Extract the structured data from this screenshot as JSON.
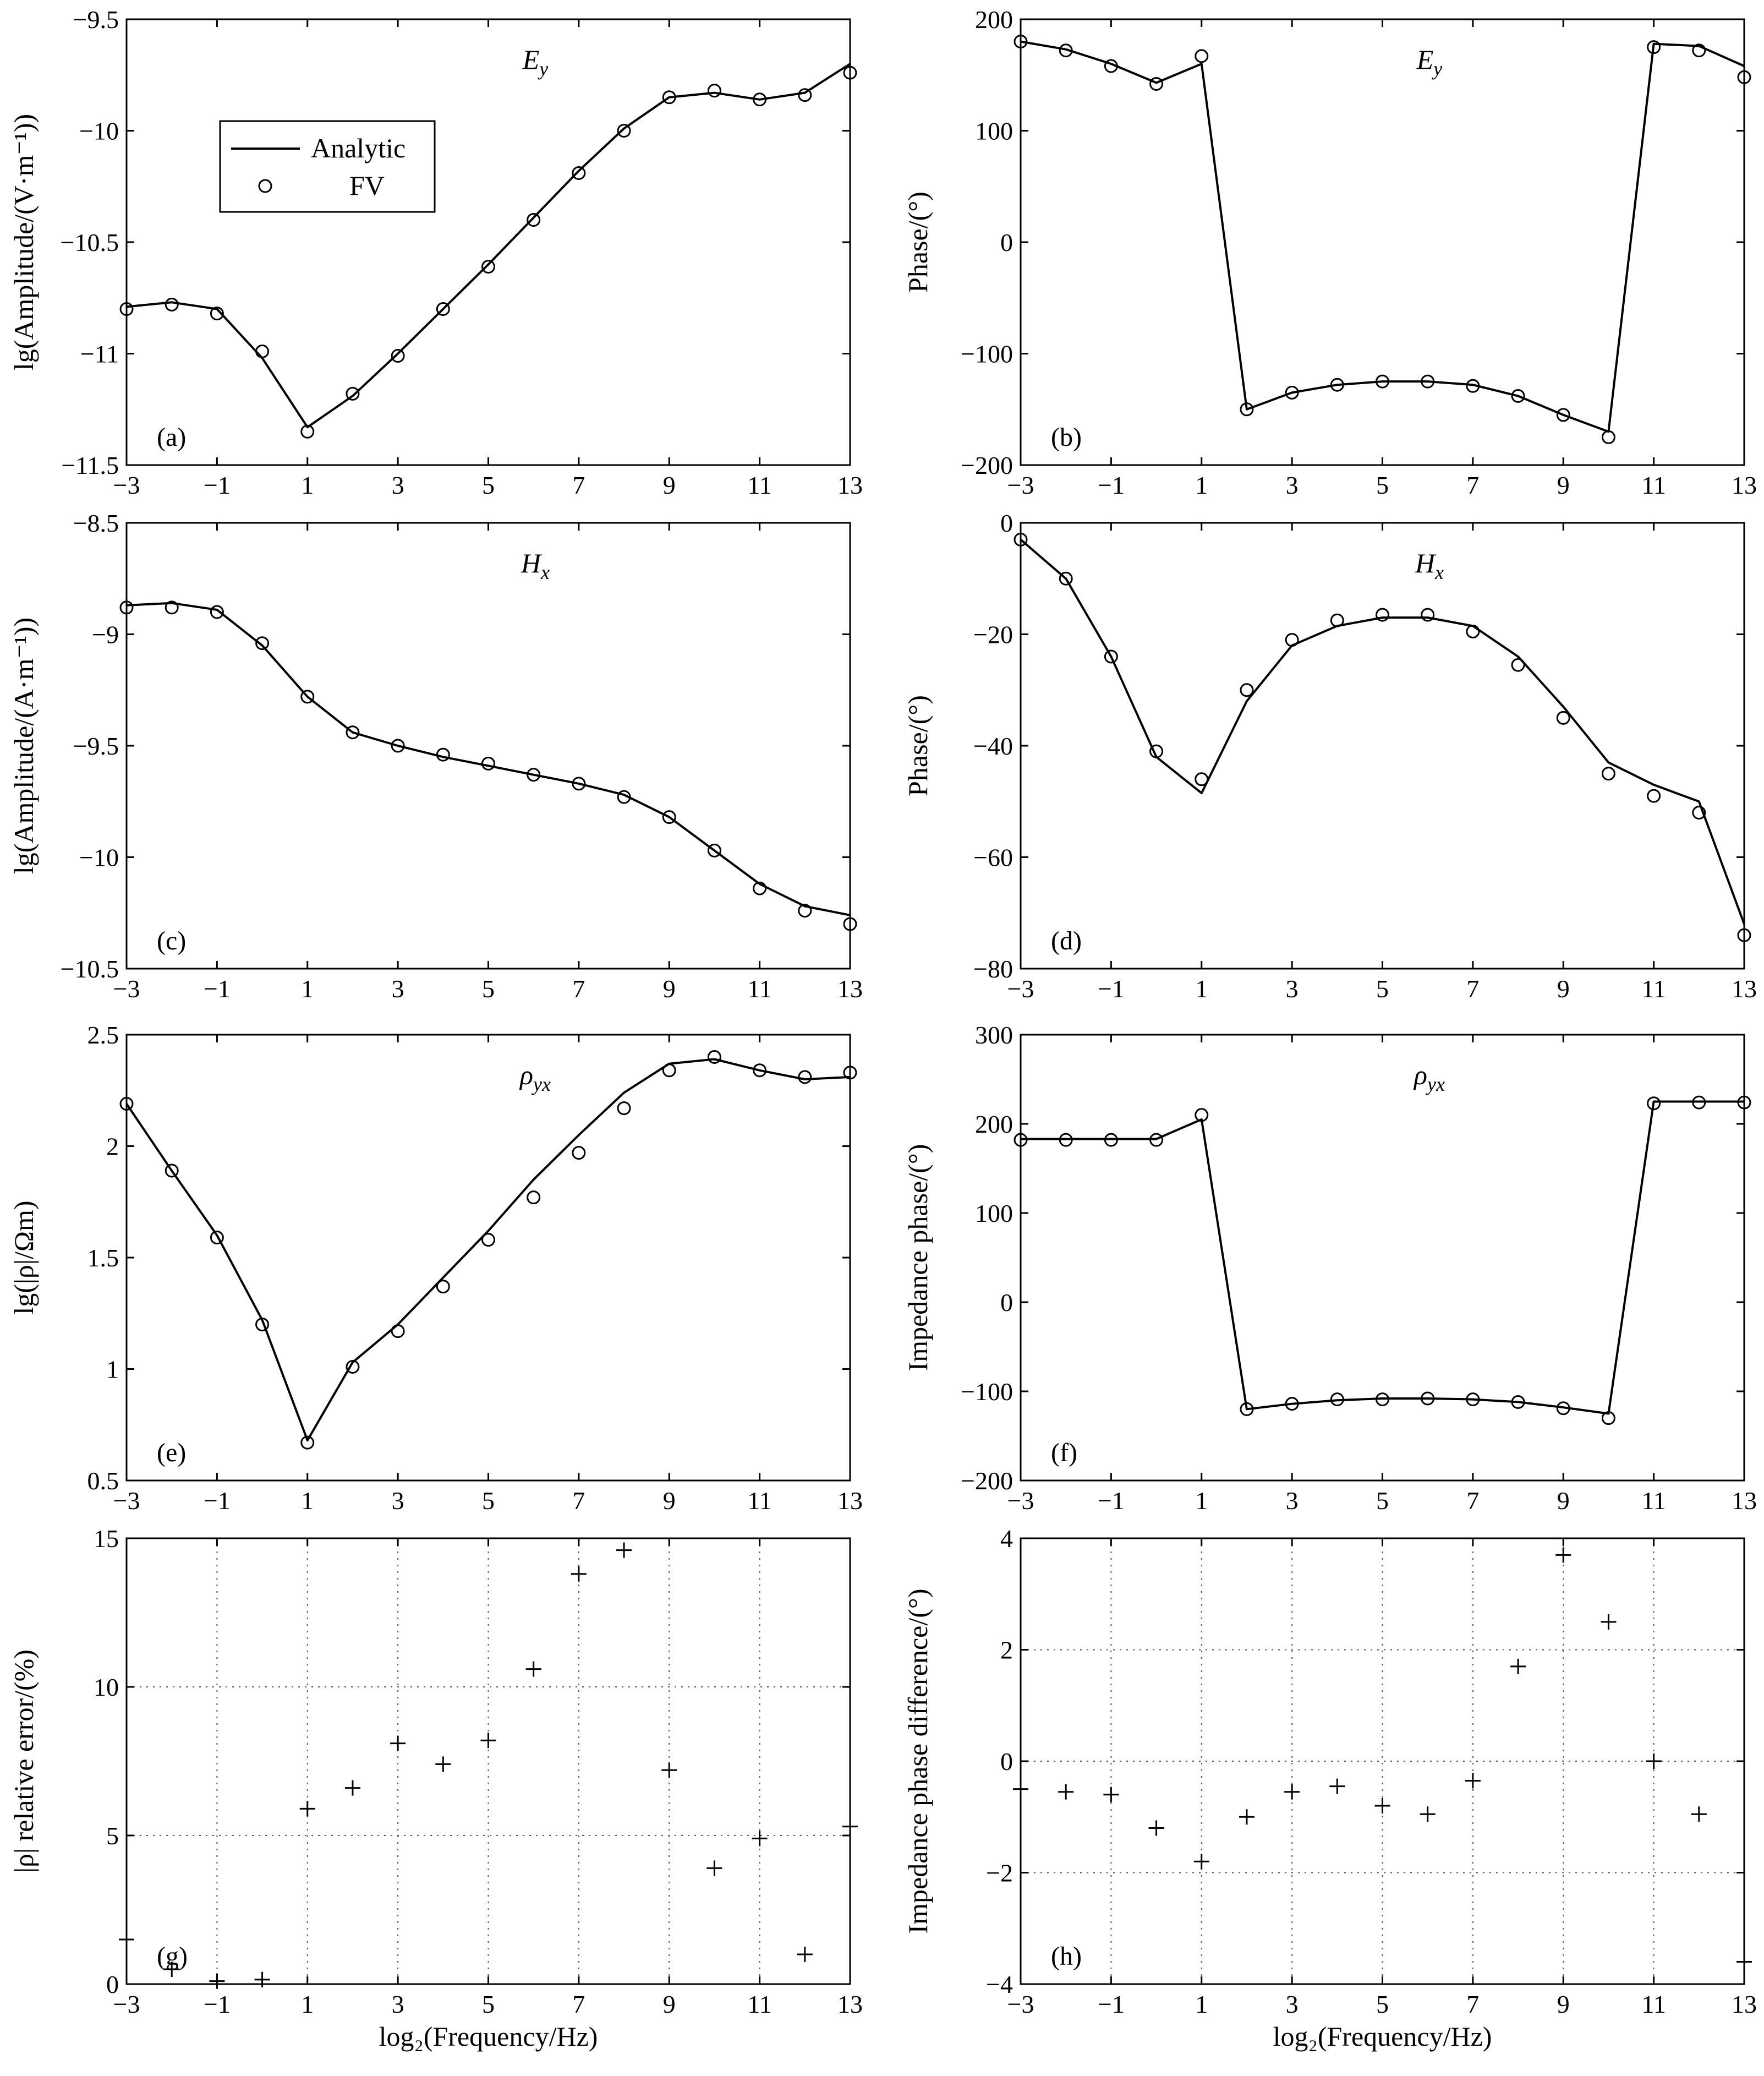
{
  "chart_data": [
    {
      "id": "a",
      "type": "line",
      "label": "(a)",
      "title": "E_y",
      "ylabel": "lg(Amplitude/(V·m⁻¹))",
      "xlabel": "",
      "xlim": [
        -3,
        13
      ],
      "ylim": [
        -11.5,
        -9.5
      ],
      "xticks": [
        -3,
        -1,
        1,
        3,
        5,
        7,
        9,
        11,
        13
      ],
      "yticks": [
        -11.5,
        -11,
        -10.5,
        -10,
        -9.5
      ],
      "ytick_labels": [
        "−11.5",
        "−11",
        "−10.5",
        "−10",
        "−9.5"
      ],
      "grid": false,
      "marker": "circle",
      "x": [
        -3,
        -2,
        -1,
        0,
        1,
        2,
        3,
        4,
        5,
        6,
        7,
        8,
        9,
        10,
        11,
        12,
        13
      ],
      "series": [
        {
          "name": "Analytic",
          "style": "line",
          "values": [
            -10.79,
            -10.77,
            -10.8,
            -11.02,
            -11.33,
            -11.19,
            -11.0,
            -10.8,
            -10.6,
            -10.39,
            -10.18,
            -9.99,
            -9.85,
            -9.83,
            -9.86,
            -9.83,
            -9.7
          ]
        },
        {
          "name": "FV",
          "style": "marker",
          "values": [
            -10.8,
            -10.78,
            -10.82,
            -10.99,
            -11.35,
            -11.18,
            -11.01,
            -10.8,
            -10.61,
            -10.4,
            -10.19,
            -10.0,
            -9.85,
            -9.82,
            -9.86,
            -9.84,
            -9.74
          ]
        }
      ],
      "legend": {
        "position": "top-left",
        "entries": [
          "Analytic",
          "FV"
        ]
      }
    },
    {
      "id": "b",
      "type": "line",
      "label": "(b)",
      "title": "E_y",
      "ylabel": "Phase/(°)",
      "xlabel": "",
      "xlim": [
        -3,
        13
      ],
      "ylim": [
        -200,
        200
      ],
      "xticks": [
        -3,
        -1,
        1,
        3,
        5,
        7,
        9,
        11,
        13
      ],
      "yticks": [
        -200,
        -100,
        0,
        100,
        200
      ],
      "ytick_labels": [
        "−200",
        "−100",
        "0",
        "100",
        "200"
      ],
      "grid": false,
      "marker": "circle",
      "x": [
        -3,
        -2,
        -1,
        0,
        1,
        2,
        3,
        4,
        5,
        6,
        7,
        8,
        9,
        10,
        11,
        12,
        13
      ],
      "series": [
        {
          "name": "Analytic",
          "style": "line",
          "values": [
            180,
            173,
            160,
            143,
            160,
            -150,
            -135,
            -128,
            -125,
            -125,
            -128,
            -138,
            -155,
            -170,
            178,
            176,
            158
          ]
        },
        {
          "name": "FV",
          "style": "marker",
          "values": [
            180,
            172,
            158,
            142,
            167,
            -150,
            -135,
            -128,
            -125,
            -125,
            -129,
            -138,
            -155,
            -175,
            175,
            172,
            148
          ]
        }
      ]
    },
    {
      "id": "c",
      "type": "line",
      "label": "(c)",
      "title": "H_x",
      "ylabel": "lg(Amplitude/(A·m⁻¹))",
      "xlabel": "",
      "xlim": [
        -3,
        13
      ],
      "ylim": [
        -10.5,
        -8.5
      ],
      "xticks": [
        -3,
        -1,
        1,
        3,
        5,
        7,
        9,
        11,
        13
      ],
      "yticks": [
        -10.5,
        -10,
        -9.5,
        -9,
        -8.5
      ],
      "ytick_labels": [
        "−10.5",
        "−10",
        "−9.5",
        "−9",
        "−8.5"
      ],
      "grid": false,
      "marker": "circle",
      "x": [
        -3,
        -2,
        -1,
        0,
        1,
        2,
        3,
        4,
        5,
        6,
        7,
        8,
        9,
        10,
        11,
        12,
        13
      ],
      "series": [
        {
          "name": "Analytic",
          "style": "line",
          "values": [
            -8.87,
            -8.86,
            -8.89,
            -9.05,
            -9.28,
            -9.44,
            -9.5,
            -9.55,
            -9.59,
            -9.63,
            -9.67,
            -9.72,
            -9.82,
            -9.97,
            -10.12,
            -10.22,
            -10.26
          ]
        },
        {
          "name": "FV",
          "style": "marker",
          "values": [
            -8.88,
            -8.88,
            -8.9,
            -9.04,
            -9.28,
            -9.44,
            -9.5,
            -9.54,
            -9.58,
            -9.63,
            -9.67,
            -9.73,
            -9.82,
            -9.97,
            -10.14,
            -10.24,
            -10.3
          ]
        }
      ]
    },
    {
      "id": "d",
      "type": "line",
      "label": "(d)",
      "title": "H_x",
      "ylabel": "Phase/(°)",
      "xlabel": "",
      "xlim": [
        -3,
        13
      ],
      "ylim": [
        -80,
        0
      ],
      "xticks": [
        -3,
        -1,
        1,
        3,
        5,
        7,
        9,
        11,
        13
      ],
      "yticks": [
        -80,
        -60,
        -40,
        -20,
        0
      ],
      "ytick_labels": [
        "−80",
        "−60",
        "−40",
        "−20",
        "0"
      ],
      "grid": false,
      "marker": "circle",
      "x": [
        -3,
        -2,
        -1,
        0,
        1,
        2,
        3,
        4,
        5,
        6,
        7,
        8,
        9,
        10,
        11,
        12,
        13
      ],
      "series": [
        {
          "name": "Analytic",
          "style": "line",
          "values": [
            -3,
            -10,
            -24,
            -42,
            -48.5,
            -32,
            -22,
            -18.5,
            -17,
            -17,
            -18.5,
            -24,
            -33,
            -43,
            -47,
            -50,
            -72
          ]
        },
        {
          "name": "FV",
          "style": "marker",
          "values": [
            -3,
            -10,
            -24,
            -41,
            -46,
            -30,
            -21,
            -17.5,
            -16.5,
            -16.5,
            -19.5,
            -25.5,
            -35,
            -45,
            -49,
            -52,
            -74
          ]
        }
      ]
    },
    {
      "id": "e",
      "type": "line",
      "label": "(e)",
      "title": "ρ_yx",
      "ylabel": "lg(|ρ|/Ωm)",
      "xlabel": "",
      "xlim": [
        -3,
        13
      ],
      "ylim": [
        0.5,
        2.5
      ],
      "xticks": [
        -3,
        -1,
        1,
        3,
        5,
        7,
        9,
        11,
        13
      ],
      "yticks": [
        0.5,
        1,
        1.5,
        2,
        2.5
      ],
      "ytick_labels": [
        "0.5",
        "1",
        "1.5",
        "2",
        "2.5"
      ],
      "grid": false,
      "marker": "circle",
      "x": [
        -3,
        -2,
        -1,
        0,
        1,
        2,
        3,
        4,
        5,
        6,
        7,
        8,
        9,
        10,
        11,
        12,
        13
      ],
      "series": [
        {
          "name": "Analytic",
          "style": "line",
          "values": [
            2.19,
            1.89,
            1.6,
            1.22,
            0.68,
            1.03,
            1.2,
            1.41,
            1.62,
            1.85,
            2.05,
            2.24,
            2.37,
            2.39,
            2.34,
            2.3,
            2.31
          ]
        },
        {
          "name": "FV",
          "style": "marker",
          "values": [
            2.19,
            1.89,
            1.59,
            1.2,
            0.67,
            1.01,
            1.17,
            1.37,
            1.58,
            1.77,
            1.97,
            2.17,
            2.34,
            2.4,
            2.34,
            2.31,
            2.33
          ]
        }
      ]
    },
    {
      "id": "f",
      "type": "line",
      "label": "(f)",
      "title": "ρ_yx",
      "ylabel": "Impedance phase/(°)",
      "xlabel": "",
      "xlim": [
        -3,
        13
      ],
      "ylim": [
        -200,
        300
      ],
      "xticks": [
        -3,
        -1,
        1,
        3,
        5,
        7,
        9,
        11,
        13
      ],
      "yticks": [
        -200,
        -100,
        0,
        100,
        200,
        300
      ],
      "ytick_labels": [
        "−200",
        "−100",
        "0",
        "100",
        "200",
        "300"
      ],
      "grid": false,
      "marker": "circle",
      "x": [
        -3,
        -2,
        -1,
        0,
        1,
        2,
        3,
        4,
        5,
        6,
        7,
        8,
        9,
        10,
        11,
        12,
        13
      ],
      "series": [
        {
          "name": "Analytic",
          "style": "line",
          "values": [
            183,
            183,
            183,
            183,
            205,
            -120,
            -114,
            -110,
            -108,
            -108,
            -109,
            -112,
            -118,
            -125,
            225,
            225,
            225
          ]
        },
        {
          "name": "FV",
          "style": "marker",
          "values": [
            182,
            182,
            182,
            182,
            210,
            -120,
            -114,
            -109,
            -109,
            -108,
            -109,
            -112,
            -119,
            -130,
            223,
            224,
            224
          ]
        }
      ]
    },
    {
      "id": "g",
      "type": "scatter",
      "label": "(g)",
      "title": "",
      "ylabel": "|ρ| relative error/(%)",
      "xlabel": "log₂(Frequency/Hz)",
      "xlim": [
        -3,
        13
      ],
      "ylim": [
        0,
        15
      ],
      "xticks": [
        -3,
        -1,
        1,
        3,
        5,
        7,
        9,
        11,
        13
      ],
      "yticks": [
        0,
        5,
        10,
        15
      ],
      "ytick_labels": [
        "0",
        "5",
        "10",
        "15"
      ],
      "grid": true,
      "marker": "plus",
      "x": [
        -3,
        -2,
        -1,
        0,
        1,
        2,
        3,
        4,
        5,
        6,
        7,
        8,
        9,
        10,
        11,
        12,
        13
      ],
      "series": [
        {
          "name": "error",
          "style": "plus",
          "values": [
            1.5,
            0.5,
            0.1,
            0.15,
            5.9,
            6.6,
            8.1,
            7.4,
            8.2,
            10.6,
            13.8,
            14.6,
            7.2,
            3.9,
            4.9,
            1.0,
            5.3
          ]
        }
      ]
    },
    {
      "id": "h",
      "type": "scatter",
      "label": "(h)",
      "title": "",
      "ylabel": "Impedance phase difference/(°)",
      "xlabel": "log₂(Frequency/Hz)",
      "xlim": [
        -3,
        13
      ],
      "ylim": [
        -4,
        4
      ],
      "xticks": [
        -3,
        -1,
        1,
        3,
        5,
        7,
        9,
        11,
        13
      ],
      "yticks": [
        -4,
        -2,
        0,
        2,
        4
      ],
      "ytick_labels": [
        "−4",
        "−2",
        "0",
        "2",
        "4"
      ],
      "grid": true,
      "marker": "plus",
      "x": [
        -3,
        -2,
        -1,
        0,
        1,
        2,
        3,
        4,
        5,
        6,
        7,
        8,
        9,
        10,
        11,
        12,
        13
      ],
      "series": [
        {
          "name": "difference",
          "style": "plus",
          "values": [
            -0.5,
            -0.55,
            -0.6,
            -1.2,
            -1.8,
            -1.0,
            -0.55,
            -0.45,
            -0.8,
            -0.95,
            -0.35,
            1.7,
            3.7,
            2.5,
            0.0,
            -0.95,
            -3.6
          ]
        }
      ]
    }
  ]
}
